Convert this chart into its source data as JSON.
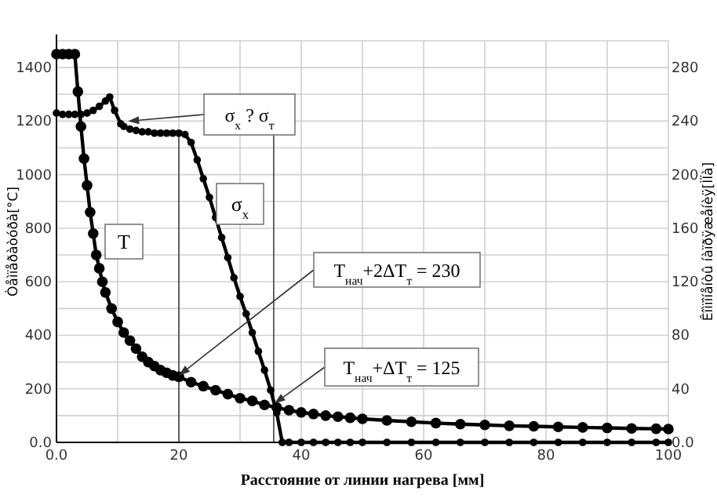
{
  "chart_data": {
    "type": "line",
    "xlabel": "Расстояние от линии нагрева [мм]",
    "ylabel": "Òåìïåðàòóðà[°C]",
    "y2label": "Êîìïîíåíòû íàïðÿæåíèÿ[ÌÏà]",
    "xlim": [
      0,
      100
    ],
    "xticks": [
      {
        "value": 0,
        "label": "0.0"
      },
      {
        "value": 10,
        "label": null
      },
      20,
      {
        "value": 30,
        "label": null
      },
      40,
      {
        "value": 50,
        "label": null
      },
      60,
      {
        "value": 70,
        "label": null
      },
      80,
      {
        "value": 90,
        "label": null
      },
      100
    ],
    "ylim": [
      0,
      1500
    ],
    "yticks": [
      {
        "value": 0,
        "label": "0.0"
      },
      {
        "value": 100,
        "label": null
      },
      200,
      {
        "value": 300,
        "label": null
      },
      400,
      {
        "value": 500,
        "label": null
      },
      600,
      {
        "value": 700,
        "label": null
      },
      800,
      {
        "value": 900,
        "label": null
      },
      1000,
      {
        "value": 1100,
        "label": null
      },
      1200,
      {
        "value": 1300,
        "label": null
      },
      1400,
      {
        "value": 1500,
        "label": null
      }
    ],
    "y2lim": [
      0,
      300
    ],
    "y2ticks": [
      {
        "value": 0,
        "label": "0.0"
      },
      40,
      80,
      120,
      160,
      200,
      240,
      280
    ],
    "grid": true,
    "marker": "circle",
    "line_style": "solid",
    "series": [
      {
        "name": "T",
        "color": "#000000",
        "x": [
          0,
          1,
          2,
          3,
          3.5,
          4,
          4.5,
          5,
          5.5,
          6,
          6.5,
          7,
          7.5,
          8,
          9,
          10,
          11,
          12,
          13,
          14,
          15,
          16,
          17,
          18,
          19,
          20,
          22,
          24,
          26,
          28,
          30,
          32,
          34,
          36,
          38,
          40,
          42,
          44,
          46,
          48,
          50,
          54,
          58,
          62,
          66,
          70,
          74,
          78,
          82,
          86,
          90,
          94,
          98,
          100
        ],
        "values": [
          1450,
          1450,
          1450,
          1450,
          1310,
          1180,
          1060,
          960,
          860,
          780,
          700,
          650,
          600,
          560,
          500,
          450,
          410,
          380,
          350,
          320,
          300,
          285,
          270,
          260,
          250,
          245,
          225,
          210,
          195,
          180,
          165,
          155,
          140,
          130,
          120,
          112,
          106,
          100,
          96,
          92,
          88,
          82,
          77,
          72,
          68,
          65,
          62,
          60,
          58,
          56,
          54,
          52,
          51,
          50
        ]
      },
      {
        "name": "σ$_{x}$",
        "color": "#000000",
        "axis": "y2",
        "x": [
          0,
          1,
          2,
          3,
          4,
          5,
          6,
          7,
          8,
          8.7,
          9.5,
          10.5,
          11,
          12,
          13,
          14,
          15,
          16,
          17,
          18,
          19,
          20,
          21,
          22,
          23,
          24,
          25,
          26,
          27,
          28,
          29,
          30,
          31,
          32,
          33,
          34,
          35,
          36,
          36.9,
          38,
          40,
          42,
          44,
          46,
          48,
          50,
          54,
          58,
          62,
          66,
          70,
          74,
          78,
          82,
          86,
          90,
          94,
          98,
          100
        ],
        "values": [
          246,
          245,
          245,
          245,
          245,
          246,
          248,
          251,
          255,
          258,
          248,
          238,
          236,
          234,
          233,
          232,
          232,
          231,
          231,
          231,
          231,
          231,
          230,
          224,
          211,
          197,
          183,
          168,
          153,
          138,
          123,
          109,
          96,
          82,
          68,
          54,
          39,
          22,
          0,
          0,
          0,
          0,
          0,
          0,
          0,
          0,
          0,
          0,
          0,
          0,
          0,
          0,
          0,
          0,
          0,
          0,
          0,
          0,
          0
        ]
      }
    ],
    "ref_lines": [
      {
        "axis": "x",
        "value": 20,
        "color": "#404040"
      },
      {
        "axis": "x",
        "value": 35.5,
        "color": "#404040"
      }
    ],
    "annotations": [
      {
        "text": "σ$_{x}$ ? σ$_{т}$",
        "x": 11.7,
        "y": 1200
      },
      {
        "text": "T$_{нач}$+2ΔT$_{т}$ = 230",
        "x": 20,
        "y": 250
      },
      {
        "text": "T$_{нач}$+ΔT$_{т}$ = 125",
        "x": 35.6,
        "y": 145
      }
    ]
  }
}
